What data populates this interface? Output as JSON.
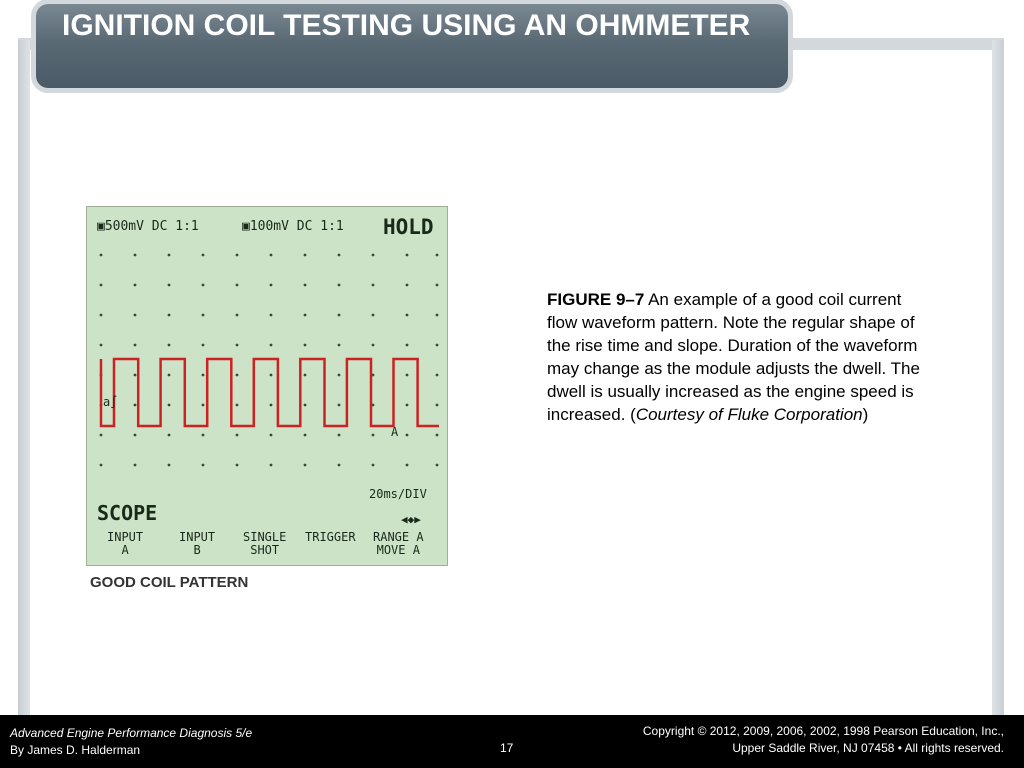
{
  "slide": {
    "title": "IGNITION COIL TESTING USING AN OHMMETER"
  },
  "scope": {
    "ch_a_setting": "▣500mV DC 1:1",
    "ch_b_setting": "▣100mV DC 1:1",
    "hold": "HOLD",
    "marker_left": "a∫",
    "marker_trace": "A",
    "timebase": "20ms/DIV",
    "mode": "SCOPE",
    "arrows": "◀◆▶",
    "softkeys": [
      {
        "line1": "INPUT",
        "line2": "A"
      },
      {
        "line1": "INPUT",
        "line2": "B"
      },
      {
        "line1": "SINGLE",
        "line2": "SHOT"
      },
      {
        "line1": "",
        "line2": "TRIGGER"
      },
      {
        "line1": "RANGE A",
        "line2": "MOVE A"
      }
    ],
    "waveform": {
      "pulses": 7,
      "shape": "square",
      "color": "#cc2222"
    }
  },
  "figure_label": "GOOD COIL PATTERN",
  "caption": {
    "figure_number": "FIGURE 9–7",
    "text": " An example of a good coil current flow waveform pattern. Note the regular shape of the rise time and slope. Duration of the waveform may change as the module adjusts the dwell. The dwell is usually increased as the engine speed is increased. (",
    "courtesy": "Courtesy of Fluke Corporation",
    "close": ")"
  },
  "footer": {
    "book": "Advanced Engine Performance Diagnosis 5/e",
    "author": "By James D. Halderman",
    "page": "17",
    "copyright_line1": "Copyright © 2012, 2009, 2006, 2002, 1998 Pearson Education, Inc.,",
    "copyright_line2": "Upper Saddle River, NJ 07458 • All rights reserved."
  }
}
